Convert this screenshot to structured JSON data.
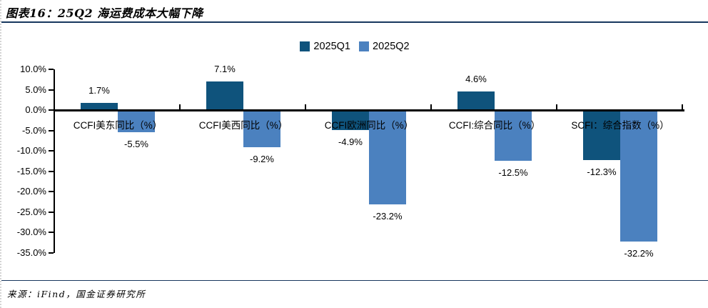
{
  "header": {
    "title": "图表16：25Q2 海运费成本大幅下降"
  },
  "footer": {
    "source": "来源：iFind，国金证券研究所"
  },
  "chart_data": {
    "type": "bar",
    "title": "25Q2 海运费成本大幅下降",
    "categories": [
      "CCFI美东同比（%）",
      "CCFI美西同比（%）",
      "CCFI欧洲同比（%）",
      "CCFI:综合同比（%）",
      "SCFI：综合指数（%）"
    ],
    "series": [
      {
        "name": "2025Q1",
        "color": "#0F537C",
        "values": [
          1.7,
          7.1,
          -4.9,
          4.6,
          -12.3
        ]
      },
      {
        "name": "2025Q2",
        "color": "#4B81BF",
        "values": [
          -5.5,
          -9.2,
          -23.2,
          -12.5,
          -32.2
        ]
      }
    ],
    "value_labels": [
      [
        "1.7%",
        "7.1%",
        "-4.9%",
        "4.6%",
        "-12.3%"
      ],
      [
        "-5.5%",
        "-9.2%",
        "-23.2%",
        "-12.5%",
        "-32.2%"
      ]
    ],
    "ylim": [
      -35,
      10
    ],
    "ytick_step": 5,
    "ytick_labels": [
      "10.0%",
      "5.0%",
      "0.0%",
      "-5.0%",
      "-10.0%",
      "-15.0%",
      "-20.0%",
      "-25.0%",
      "-30.0%",
      "-35.0%"
    ],
    "grid": false,
    "legend_position": "top-center",
    "accent_line_color": "#17375E"
  }
}
